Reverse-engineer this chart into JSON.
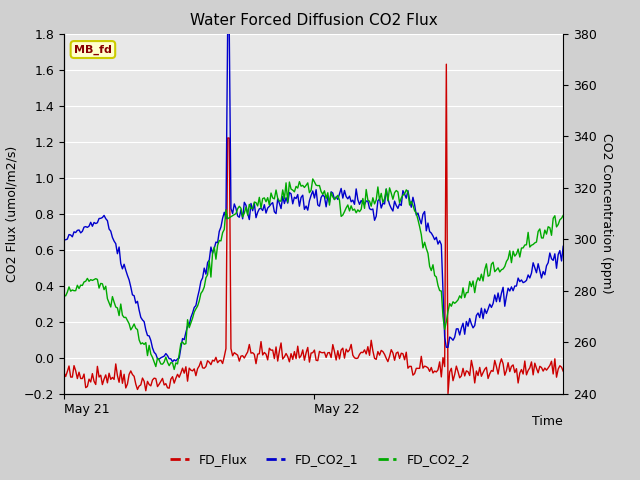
{
  "title": "Water Forced Diffusion CO2 Flux",
  "xlabel": "Time",
  "ylabel_left": "CO2 Flux (umol/m2/s)",
  "ylabel_right": "CO2 Concentration (ppm)",
  "ylim_left": [
    -0.2,
    1.8
  ],
  "ylim_right": [
    240,
    380
  ],
  "legend_labels": [
    "FD_Flux",
    "FD_CO2_1",
    "FD_CO2_2"
  ],
  "legend_colors": [
    "#cc0000",
    "#0000cc",
    "#00aa00"
  ],
  "tag_text": "MB_fd",
  "tag_facecolor": "#ffffcc",
  "tag_edgecolor": "#cccc00",
  "tag_textcolor": "#880000",
  "fig_facecolor": "#d0d0d0",
  "plot_bg_color": "#e8e8e8",
  "grid_color": "#ffffff",
  "yticks_left": [
    -0.2,
    0.0,
    0.2,
    0.4,
    0.6,
    0.8,
    1.0,
    1.2,
    1.4,
    1.6,
    1.8
  ],
  "yticks_right": [
    240,
    260,
    280,
    300,
    320,
    340,
    360,
    380
  ]
}
